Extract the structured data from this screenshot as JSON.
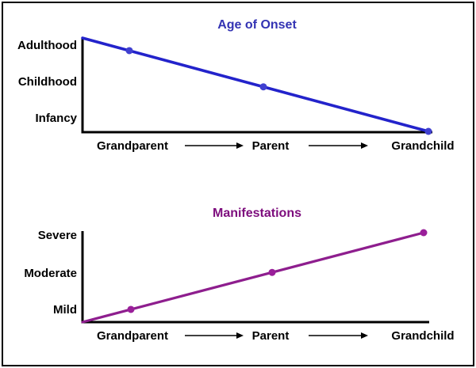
{
  "page": {
    "background": "#ffffff",
    "border_color": "#000000"
  },
  "chart_data": [
    {
      "type": "line",
      "title": "Age of Onset",
      "title_color": "#3333b3",
      "line_color": "#2323cb",
      "marker_color": "#4040d0",
      "axis_color": "#000000",
      "categories": [
        "Grandparent",
        "Parent",
        "Grandchild"
      ],
      "x_connector_icon": "right-arrow",
      "y_tick_labels": [
        "Adulthood",
        "Childhood",
        "Infancy"
      ],
      "values": [
        "Adulthood",
        "Childhood",
        "Infancy"
      ],
      "numeric_levels": [
        2.9,
        1.85,
        0.65
      ],
      "level_scale": {
        "Infancy": 1,
        "Childhood": 2,
        "Adulthood": 3
      },
      "ylim": [
        0,
        3.2
      ],
      "trend": "decreasing",
      "grid": false,
      "legend": false
    },
    {
      "type": "line",
      "title": "Manifestations",
      "title_color": "#7d0d7d",
      "line_color": "#8e1e8e",
      "marker_color": "#9a1f9a",
      "axis_color": "#000000",
      "categories": [
        "Grandparent",
        "Parent",
        "Grandchild"
      ],
      "x_connector_icon": "right-arrow",
      "y_tick_labels": [
        "Severe",
        "Moderate",
        "Mild"
      ],
      "values": [
        "Mild",
        "Moderate",
        "Severe"
      ],
      "numeric_levels": [
        1.0,
        2.0,
        3.1
      ],
      "level_scale": {
        "Mild": 1,
        "Moderate": 2,
        "Severe": 3
      },
      "ylim": [
        0,
        3.2
      ],
      "trend": "increasing",
      "grid": false,
      "legend": false
    }
  ]
}
